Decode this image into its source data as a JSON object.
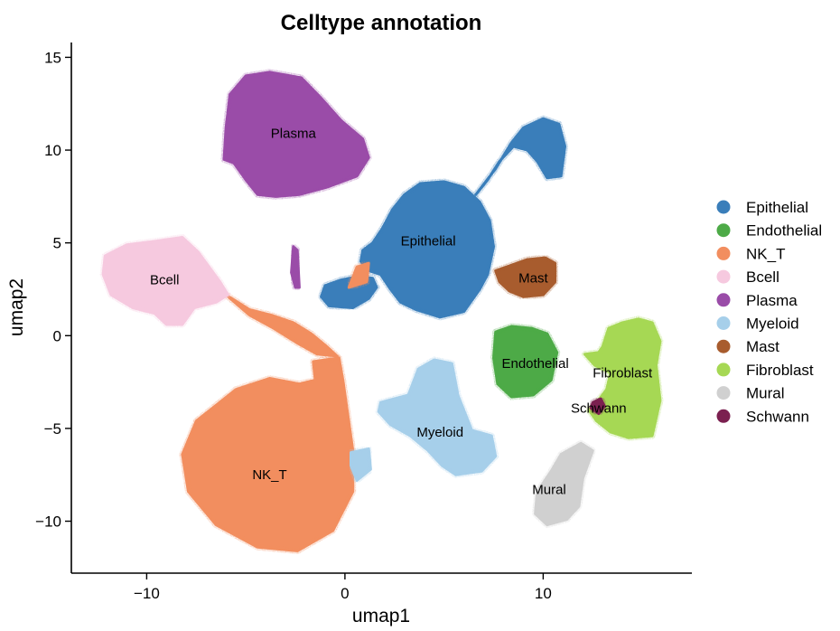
{
  "chart_data": {
    "type": "scatter",
    "title": "Celltype annotation",
    "xlabel": "umap1",
    "ylabel": "umap2",
    "xlim": [
      -13.8,
      17.5
    ],
    "ylim": [
      -12.8,
      15.8
    ],
    "xticks": [
      {
        "value": -10,
        "label": "−10"
      },
      {
        "value": 0,
        "label": "0"
      },
      {
        "value": 10,
        "label": "10"
      }
    ],
    "yticks": [
      {
        "value": 15,
        "label": "15"
      },
      {
        "value": 10,
        "label": "10"
      },
      {
        "value": 5,
        "label": "5"
      },
      {
        "value": 0,
        "label": "0"
      },
      {
        "value": -5,
        "label": "−5"
      },
      {
        "value": -10,
        "label": "−10"
      }
    ],
    "grid": false,
    "legend_position": "right",
    "series": [
      {
        "name": "Epithelial",
        "color": "#3A7EBA",
        "label_at": [
          4.2,
          5.1
        ],
        "regions": [
          [
            [
              0.8,
              4.0
            ],
            [
              1.2,
              3.5
            ],
            [
              1.8,
              3.3
            ],
            [
              2.3,
              2.5
            ],
            [
              2.8,
              1.8
            ],
            [
              3.6,
              1.4
            ],
            [
              4.8,
              1.0
            ],
            [
              6.0,
              1.3
            ],
            [
              6.8,
              2.5
            ],
            [
              7.2,
              3.3
            ],
            [
              7.5,
              4.8
            ],
            [
              7.3,
              6.2
            ],
            [
              6.8,
              7.2
            ],
            [
              6.0,
              8.0
            ],
            [
              5.0,
              8.3
            ],
            [
              3.8,
              8.2
            ],
            [
              3.0,
              7.6
            ],
            [
              2.4,
              6.8
            ],
            [
              1.9,
              5.8
            ],
            [
              1.4,
              5.0
            ],
            [
              0.9,
              4.6
            ]
          ],
          [
            [
              -1.2,
              2.1
            ],
            [
              -0.8,
              1.6
            ],
            [
              0.4,
              1.5
            ],
            [
              1.2,
              2.0
            ],
            [
              1.6,
              2.6
            ],
            [
              1.4,
              3.1
            ],
            [
              0.7,
              3.2
            ],
            [
              -0.2,
              3.0
            ],
            [
              -1.0,
              2.7
            ]
          ],
          [
            [
              6.6,
              7.6
            ],
            [
              7.6,
              9.0
            ],
            [
              8.4,
              10.4
            ],
            [
              9.0,
              11.2
            ],
            [
              10.0,
              11.7
            ],
            [
              10.8,
              11.4
            ],
            [
              11.1,
              10.2
            ],
            [
              10.9,
              8.6
            ],
            [
              10.2,
              8.5
            ],
            [
              9.7,
              9.4
            ],
            [
              9.2,
              10.0
            ],
            [
              8.5,
              10.2
            ],
            [
              7.8,
              9.4
            ],
            [
              7.2,
              8.4
            ]
          ]
        ]
      },
      {
        "name": "Endothelial",
        "color": "#4DAA47",
        "label_at": [
          9.6,
          -1.5
        ],
        "regions": [
          [
            [
              7.6,
              0.2
            ],
            [
              8.4,
              0.5
            ],
            [
              9.4,
              0.4
            ],
            [
              10.2,
              0.1
            ],
            [
              10.7,
              -0.9
            ],
            [
              10.4,
              -2.4
            ],
            [
              9.5,
              -3.2
            ],
            [
              8.4,
              -3.3
            ],
            [
              7.7,
              -2.6
            ],
            [
              7.5,
              -1.2
            ]
          ]
        ]
      },
      {
        "name": "NK_T",
        "color": "#F28E5F",
        "label_at": [
          -3.8,
          -7.5
        ],
        "regions": [
          [
            [
              -5.5,
              -2.9
            ],
            [
              -3.8,
              -2.3
            ],
            [
              -2.3,
              -2.6
            ],
            [
              -1.5,
              -2.4
            ],
            [
              -1.6,
              -1.4
            ],
            [
              -0.3,
              -1.2
            ],
            [
              -0.1,
              -2.4
            ],
            [
              0.4,
              -6.2
            ],
            [
              0.4,
              -8.4
            ],
            [
              -0.6,
              -10.5
            ],
            [
              -2.4,
              -11.6
            ],
            [
              -4.4,
              -11.4
            ],
            [
              -6.5,
              -10.2
            ],
            [
              -7.9,
              -8.4
            ],
            [
              -8.2,
              -6.4
            ],
            [
              -7.5,
              -4.6
            ]
          ],
          [
            [
              -6.0,
              2.2
            ],
            [
              -4.8,
              1.4
            ],
            [
              -3.7,
              1.1
            ],
            [
              -2.6,
              0.7
            ],
            [
              -1.7,
              0.1
            ],
            [
              -0.9,
              -0.6
            ],
            [
              -0.4,
              -1.1
            ],
            [
              -1.4,
              -1.0
            ],
            [
              -2.4,
              -0.4
            ],
            [
              -3.6,
              0.4
            ],
            [
              -4.8,
              1.1
            ]
          ],
          [
            [
              0.2,
              2.6
            ],
            [
              0.6,
              3.7
            ],
            [
              1.2,
              3.9
            ],
            [
              1.1,
              2.9
            ]
          ]
        ]
      },
      {
        "name": "Bcell",
        "color": "#F6C9DF",
        "label_at": [
          -9.1,
          3.0
        ],
        "regions": [
          [
            [
              -12.1,
              4.3
            ],
            [
              -11.0,
              4.9
            ],
            [
              -9.5,
              5.1
            ],
            [
              -8.2,
              5.3
            ],
            [
              -7.4,
              4.5
            ],
            [
              -6.3,
              2.9
            ],
            [
              -5.9,
              2.2
            ],
            [
              -6.5,
              1.8
            ],
            [
              -7.6,
              1.5
            ],
            [
              -8.2,
              0.6
            ],
            [
              -9.0,
              0.6
            ],
            [
              -9.6,
              1.2
            ],
            [
              -10.7,
              1.5
            ],
            [
              -11.8,
              2.2
            ],
            [
              -12.2,
              3.3
            ]
          ]
        ]
      },
      {
        "name": "Plasma",
        "color": "#9A4CA8",
        "label_at": [
          -2.6,
          10.9
        ],
        "regions": [
          [
            [
              -5.8,
              13.0
            ],
            [
              -5.0,
              14.0
            ],
            [
              -3.8,
              14.2
            ],
            [
              -2.2,
              13.9
            ],
            [
              -1.2,
              12.8
            ],
            [
              -0.2,
              11.6
            ],
            [
              0.9,
              10.6
            ],
            [
              1.2,
              9.6
            ],
            [
              0.6,
              8.6
            ],
            [
              -0.9,
              8.0
            ],
            [
              -2.3,
              7.6
            ],
            [
              -3.5,
              7.5
            ],
            [
              -4.4,
              7.6
            ],
            [
              -5.0,
              8.4
            ],
            [
              -5.6,
              9.3
            ],
            [
              -6.1,
              9.5
            ],
            [
              -6.0,
              11.2
            ]
          ],
          [
            [
              -2.6,
              4.8
            ],
            [
              -2.4,
              4.6
            ],
            [
              -2.3,
              2.6
            ],
            [
              -2.5,
              2.6
            ],
            [
              -2.7,
              3.4
            ]
          ]
        ]
      },
      {
        "name": "Myeloid",
        "color": "#A6CFEA",
        "label_at": [
          4.8,
          -5.2
        ],
        "regions": [
          [
            [
              1.8,
              -3.6
            ],
            [
              3.2,
              -3.2
            ],
            [
              3.7,
              -1.8
            ],
            [
              4.5,
              -1.3
            ],
            [
              5.4,
              -1.5
            ],
            [
              5.7,
              -3.2
            ],
            [
              6.4,
              -5.1
            ],
            [
              7.4,
              -5.4
            ],
            [
              7.6,
              -6.5
            ],
            [
              6.9,
              -7.3
            ],
            [
              5.6,
              -7.5
            ],
            [
              4.9,
              -7.0
            ],
            [
              4.2,
              -6.2
            ],
            [
              3.3,
              -5.4
            ],
            [
              2.3,
              -4.8
            ],
            [
              1.7,
              -4.1
            ]
          ],
          [
            [
              0.3,
              -6.3
            ],
            [
              1.2,
              -6.1
            ],
            [
              1.3,
              -7.2
            ],
            [
              0.6,
              -7.8
            ],
            [
              0.3,
              -7.0
            ]
          ]
        ]
      },
      {
        "name": "Mast",
        "color": "#A85C2E",
        "label_at": [
          9.5,
          3.1
        ],
        "regions": [
          [
            [
              7.6,
              3.5
            ],
            [
              8.4,
              3.8
            ],
            [
              9.2,
              4.1
            ],
            [
              10.1,
              4.2
            ],
            [
              10.6,
              3.9
            ],
            [
              10.6,
              2.9
            ],
            [
              10.0,
              2.2
            ],
            [
              9.0,
              2.1
            ],
            [
              8.3,
              2.4
            ],
            [
              7.8,
              2.9
            ]
          ]
        ]
      },
      {
        "name": "Fibroblast",
        "color": "#A6D854",
        "label_at": [
          14.0,
          -2.0
        ],
        "regions": [
          [
            [
              13.0,
              -0.6
            ],
            [
              13.3,
              0.4
            ],
            [
              14.0,
              0.7
            ],
            [
              14.8,
              0.9
            ],
            [
              15.5,
              0.7
            ],
            [
              15.9,
              -0.3
            ],
            [
              15.7,
              -1.6
            ],
            [
              15.9,
              -3.5
            ],
            [
              15.5,
              -5.4
            ],
            [
              14.3,
              -5.5
            ],
            [
              13.4,
              -5.2
            ],
            [
              12.7,
              -4.6
            ],
            [
              12.3,
              -4.0
            ],
            [
              12.7,
              -3.6
            ],
            [
              13.2,
              -2.9
            ],
            [
              13.4,
              -2.0
            ],
            [
              12.6,
              -1.6
            ],
            [
              12.1,
              -1.0
            ],
            [
              12.8,
              -0.9
            ]
          ]
        ]
      },
      {
        "name": "Mural",
        "color": "#D0D0D0",
        "label_at": [
          10.3,
          -8.3
        ],
        "regions": [
          [
            [
              10.9,
              -6.4
            ],
            [
              11.9,
              -5.8
            ],
            [
              12.5,
              -6.2
            ],
            [
              12.0,
              -7.7
            ],
            [
              11.8,
              -9.2
            ],
            [
              11.2,
              -9.9
            ],
            [
              10.2,
              -10.2
            ],
            [
              9.6,
              -9.6
            ],
            [
              9.7,
              -8.4
            ],
            [
              10.4,
              -7.3
            ]
          ]
        ]
      },
      {
        "name": "Schwann",
        "color": "#7B2050",
        "label_at": [
          12.8,
          -3.9
        ],
        "regions": [
          [
            [
              12.5,
              -3.6
            ],
            [
              12.9,
              -3.4
            ],
            [
              13.1,
              -3.8
            ],
            [
              12.8,
              -4.2
            ],
            [
              12.4,
              -3.9
            ]
          ]
        ]
      }
    ]
  }
}
